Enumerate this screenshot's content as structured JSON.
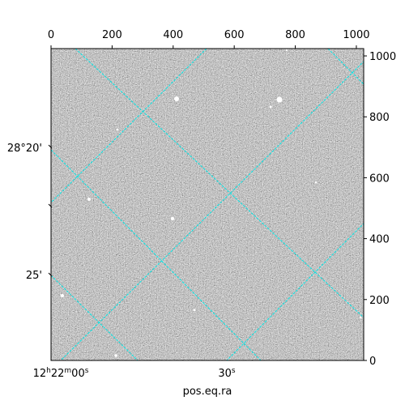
{
  "chart_data": {
    "type": "image",
    "xlabel": "pos.eq.ra",
    "xlim": [
      0,
      1024
    ],
    "ylim": [
      0,
      1024
    ],
    "xticks": [
      0,
      200,
      400,
      600,
      800,
      1000
    ],
    "yticks": [
      0,
      200,
      400,
      600,
      800,
      1000
    ],
    "ra_ticks": [
      [
        "12",
        "h",
        "22",
        "m",
        "00",
        "s"
      ],
      [
        "30",
        "s"
      ]
    ],
    "dec_ticks": [
      "28°20'",
      "25'"
    ],
    "grid_color": "#00e5e5"
  }
}
